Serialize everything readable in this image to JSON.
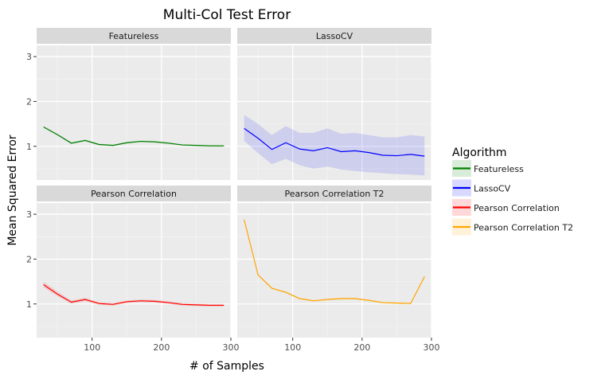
{
  "chart_data": {
    "type": "line",
    "title": "Multi-Col Test Error",
    "xlabel": "# of Samples",
    "ylabel": "Mean Squared Error",
    "xlim": [
      20,
      300
    ],
    "ylim": [
      0.25,
      3.25
    ],
    "x_ticks": [
      100,
      200,
      300
    ],
    "y_ticks": [
      1,
      2,
      3
    ],
    "grid": true,
    "legend": {
      "title": "Algorithm",
      "position": "right"
    },
    "series": [
      {
        "name": "Featureless",
        "color": "#008000",
        "x": [
          30,
          50,
          70,
          90,
          110,
          130,
          150,
          170,
          190,
          210,
          230,
          250,
          270,
          290
        ],
        "values": [
          1.43,
          1.26,
          1.07,
          1.13,
          1.04,
          1.02,
          1.08,
          1.11,
          1.1,
          1.07,
          1.03,
          1.02,
          1.01,
          1.01
        ],
        "lower": [
          1.41,
          1.24,
          1.05,
          1.11,
          1.02,
          1.0,
          1.06,
          1.09,
          1.08,
          1.05,
          1.01,
          1.0,
          0.99,
          0.99
        ],
        "upper": [
          1.45,
          1.28,
          1.09,
          1.15,
          1.06,
          1.04,
          1.1,
          1.13,
          1.12,
          1.09,
          1.05,
          1.04,
          1.03,
          1.03
        ]
      },
      {
        "name": "LassoCV",
        "color": "#0000ff",
        "x": [
          30,
          50,
          70,
          90,
          110,
          130,
          150,
          170,
          190,
          210,
          230,
          250,
          270,
          290
        ],
        "values": [
          1.4,
          1.18,
          0.93,
          1.08,
          0.94,
          0.9,
          0.97,
          0.88,
          0.9,
          0.86,
          0.8,
          0.79,
          0.82,
          0.78
        ],
        "lower": [
          1.12,
          0.85,
          0.6,
          0.72,
          0.58,
          0.5,
          0.55,
          0.48,
          0.45,
          0.42,
          0.4,
          0.38,
          0.37,
          0.35
        ],
        "upper": [
          1.7,
          1.5,
          1.25,
          1.45,
          1.3,
          1.3,
          1.4,
          1.28,
          1.3,
          1.25,
          1.2,
          1.2,
          1.25,
          1.22
        ]
      },
      {
        "name": "Pearson Correlation",
        "color": "#ff0000",
        "x": [
          30,
          50,
          70,
          90,
          110,
          130,
          150,
          170,
          190,
          210,
          230,
          250,
          270,
          290
        ],
        "values": [
          1.43,
          1.22,
          1.04,
          1.1,
          1.01,
          0.99,
          1.05,
          1.07,
          1.06,
          1.03,
          0.99,
          0.98,
          0.97,
          0.97
        ],
        "lower": [
          1.37,
          1.17,
          1.0,
          1.06,
          0.98,
          0.96,
          1.02,
          1.04,
          1.03,
          1.0,
          0.96,
          0.95,
          0.94,
          0.94
        ],
        "upper": [
          1.5,
          1.28,
          1.08,
          1.14,
          1.04,
          1.02,
          1.08,
          1.1,
          1.09,
          1.06,
          1.02,
          1.01,
          1.0,
          1.0
        ]
      },
      {
        "name": "Pearson Correlation T2",
        "color": "#ffa500",
        "x": [
          30,
          50,
          70,
          90,
          110,
          130,
          150,
          170,
          190,
          210,
          230,
          250,
          270,
          290
        ],
        "values": [
          2.88,
          1.65,
          1.35,
          1.26,
          1.12,
          1.07,
          1.1,
          1.12,
          1.12,
          1.08,
          1.03,
          1.02,
          1.01,
          1.61
        ],
        "lower": [
          2.86,
          1.63,
          1.33,
          1.24,
          1.1,
          1.05,
          1.08,
          1.1,
          1.1,
          1.06,
          1.01,
          1.0,
          0.99,
          1.59
        ],
        "upper": [
          2.9,
          1.67,
          1.37,
          1.28,
          1.14,
          1.09,
          1.12,
          1.14,
          1.14,
          1.1,
          1.05,
          1.04,
          1.03,
          1.63
        ]
      }
    ],
    "facets": [
      {
        "label": "Featureless",
        "series": "Featureless"
      },
      {
        "label": "LassoCV",
        "series": "LassoCV"
      },
      {
        "label": "Pearson Correlation",
        "series": "Pearson Correlation"
      },
      {
        "label": "Pearson Correlation T2",
        "series": "Pearson Correlation T2"
      }
    ]
  }
}
